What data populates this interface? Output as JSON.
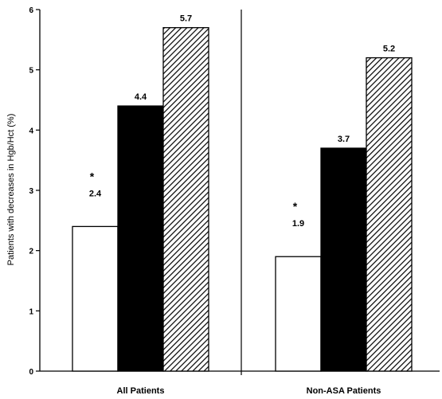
{
  "chart_data": {
    "type": "bar",
    "categories": [
      "All Patients",
      "Non-ASA Patients"
    ],
    "series": [
      {
        "values": [
          2.4,
          1.9
        ],
        "fill": "white"
      },
      {
        "values": [
          4.4,
          3.7
        ],
        "fill": "black"
      },
      {
        "values": [
          5.7,
          5.2
        ],
        "fill": "hatched"
      }
    ],
    "data_labels": [
      [
        "2.4",
        "4.4",
        "5.7"
      ],
      [
        "1.9",
        "3.7",
        "5.2"
      ]
    ],
    "annotations": [
      "*",
      "*"
    ],
    "ylabel": "Patients with decreases in Hgb/Hct (%)",
    "xlabel": "",
    "ylim": [
      0,
      6
    ],
    "yticks": [
      "0",
      "1",
      "2",
      "3",
      "4",
      "5",
      "6"
    ],
    "grid": false,
    "panel_divider": true
  }
}
